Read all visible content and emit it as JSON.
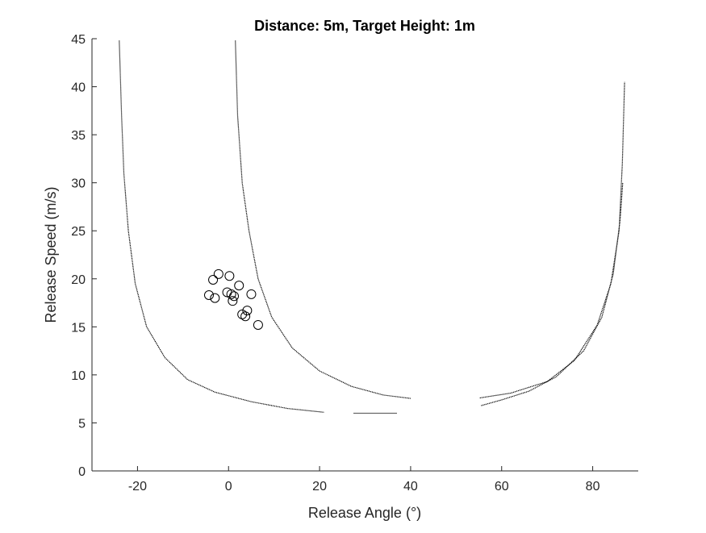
{
  "chart_data": {
    "type": "scatter",
    "title": "Distance: 5m, Target Height: 1m",
    "xlabel": "Release Angle (°)",
    "ylabel": "Release Speed (m/s)",
    "xlim": [
      -30,
      90
    ],
    "ylim": [
      0,
      45
    ],
    "xticks": [
      -20,
      0,
      20,
      40,
      60,
      80
    ],
    "yticks": [
      0,
      5,
      10,
      15,
      20,
      25,
      30,
      35,
      40,
      45
    ],
    "grid": false,
    "legend": "none",
    "boundary_curves": [
      {
        "points": [
          [
            -24,
            44.8
          ],
          [
            -23.5,
            37
          ],
          [
            -23,
            31
          ],
          [
            -22,
            25
          ],
          [
            -20.5,
            19.5
          ],
          [
            -18,
            15
          ],
          [
            -14,
            11.8
          ],
          [
            -9,
            9.5
          ],
          [
            -3,
            8.2
          ],
          [
            5,
            7.2
          ],
          [
            13,
            6.5
          ],
          [
            21,
            6.1
          ]
        ]
      },
      {
        "points": [
          [
            1.5,
            44.8
          ],
          [
            2,
            37
          ],
          [
            3,
            30
          ],
          [
            4.5,
            25
          ],
          [
            6.5,
            20
          ],
          [
            9.5,
            16
          ],
          [
            14,
            12.8
          ],
          [
            20,
            10.4
          ],
          [
            27,
            8.8
          ],
          [
            34,
            7.9
          ],
          [
            40,
            7.55
          ]
        ]
      },
      {
        "points": [
          [
            55.5,
            6.8
          ],
          [
            60,
            7.4
          ],
          [
            66,
            8.3
          ],
          [
            72,
            9.8
          ],
          [
            78,
            12.5
          ],
          [
            82,
            16
          ],
          [
            84.5,
            20.5
          ],
          [
            86,
            26
          ],
          [
            86.6,
            30
          ]
        ]
      },
      {
        "points": [
          [
            55.2,
            7.6
          ],
          [
            62,
            8.1
          ],
          [
            70,
            9.3
          ],
          [
            76,
            11.5
          ],
          [
            81,
            15.2
          ],
          [
            84,
            19.5
          ],
          [
            85.8,
            25
          ],
          [
            86.5,
            32
          ],
          [
            87,
            40.5
          ]
        ]
      },
      {
        "points": [
          [
            27.5,
            6.0
          ],
          [
            37,
            6.0
          ]
        ]
      }
    ],
    "points": [
      {
        "x": -2.2,
        "y": 20.5
      },
      {
        "x": 0.2,
        "y": 20.3
      },
      {
        "x": -3.4,
        "y": 19.9
      },
      {
        "x": 2.3,
        "y": 19.3
      },
      {
        "x": -0.3,
        "y": 18.6
      },
      {
        "x": 0.6,
        "y": 18.4
      },
      {
        "x": 1.2,
        "y": 18.2
      },
      {
        "x": -4.3,
        "y": 18.3
      },
      {
        "x": -3.0,
        "y": 18.0
      },
      {
        "x": 5.0,
        "y": 18.4
      },
      {
        "x": 0.9,
        "y": 17.7
      },
      {
        "x": 4.1,
        "y": 16.7
      },
      {
        "x": 3.0,
        "y": 16.3
      },
      {
        "x": 3.7,
        "y": 16.1
      },
      {
        "x": 6.5,
        "y": 15.2
      }
    ]
  }
}
